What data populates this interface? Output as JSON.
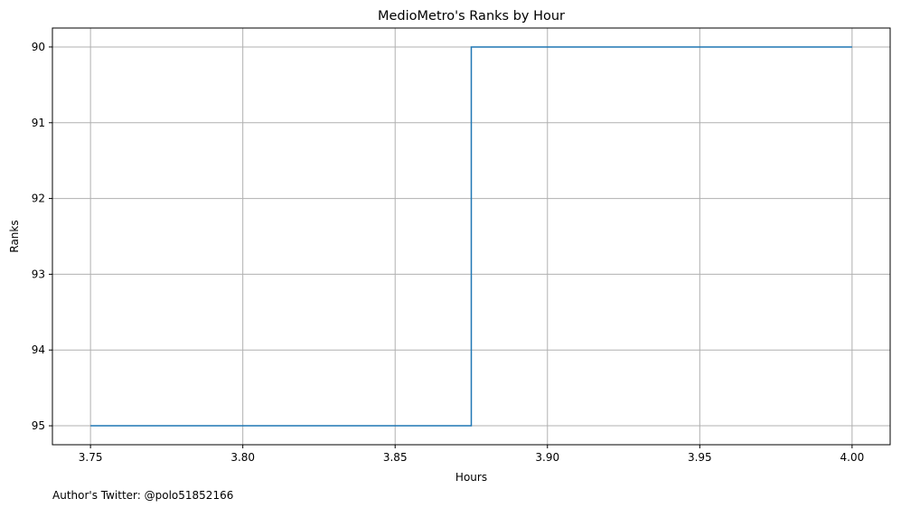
{
  "chart_data": {
    "type": "line",
    "drawstyle": "steps-post",
    "title": "MedioMetro's Ranks by Hour",
    "xlabel": "Hours",
    "ylabel": "Ranks",
    "x": [
      3.75,
      3.875,
      4.0
    ],
    "series": [
      {
        "values": [
          95,
          90,
          90
        ],
        "color": "#1f77b4"
      }
    ],
    "xlim": [
      3.7375,
      4.0125
    ],
    "ylim": [
      95.25,
      89.75
    ],
    "y_inverted": true,
    "xticks": [
      3.75,
      3.8,
      3.85,
      3.9,
      3.95,
      4.0
    ],
    "xtick_labels": [
      "3.75",
      "3.80",
      "3.85",
      "3.90",
      "3.95",
      "4.00"
    ],
    "yticks": [
      90,
      91,
      92,
      93,
      94,
      95
    ],
    "ytick_labels": [
      "90",
      "91",
      "92",
      "93",
      "94",
      "95"
    ],
    "grid": true,
    "grid_color": "#b0b0b0",
    "footnote": "Author's Twitter: @polo51852166"
  }
}
